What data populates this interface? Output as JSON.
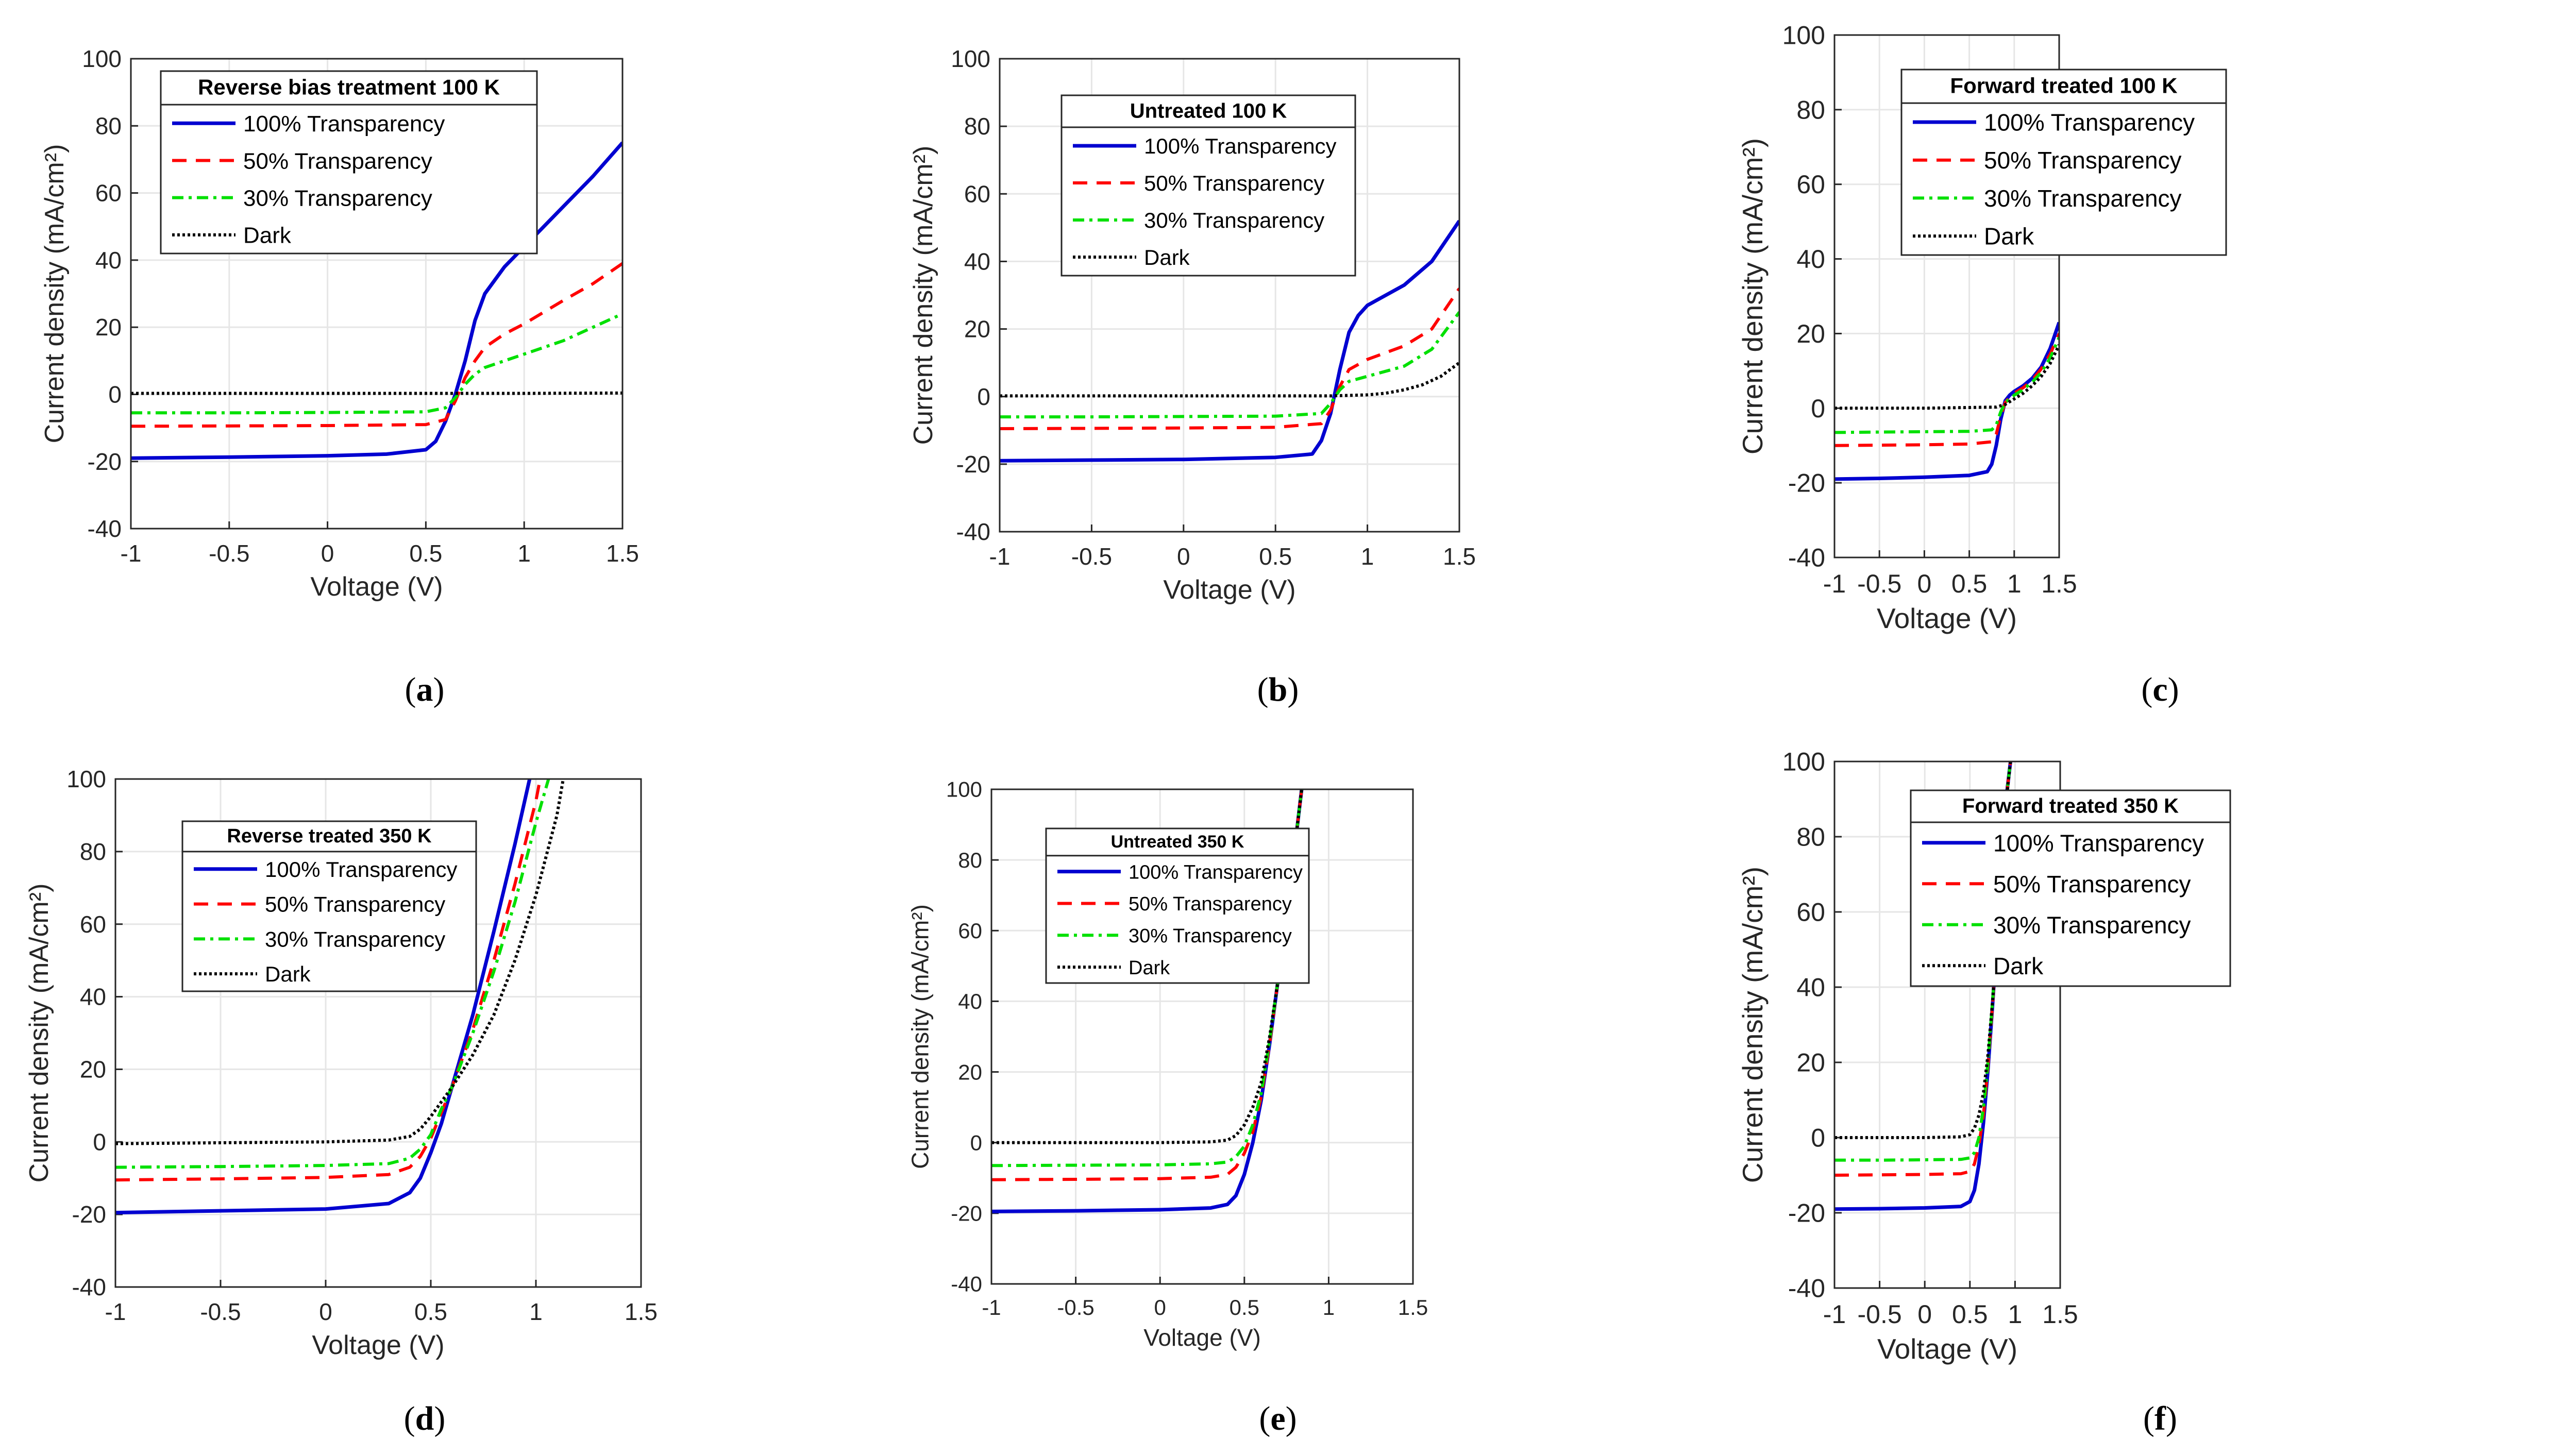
{
  "chart_data": [
    {
      "type": "line",
      "panel": "a",
      "legend_title": "Reverse bias treatment 100 K",
      "xlabel": "Voltage (V)",
      "ylabel": "Current density (mA/cm²)",
      "xlim": [
        -1,
        1.5
      ],
      "ylim": [
        -40,
        100
      ],
      "xticks": [
        "-1",
        "-0.5",
        "0",
        "0.5",
        "1",
        "1.5"
      ],
      "yticks": [
        "-40",
        "-20",
        "0",
        "20",
        "40",
        "60",
        "80",
        "100"
      ],
      "grid": true,
      "legend_position": "top-left",
      "series": [
        {
          "name": "100% Transparency",
          "style": "solid",
          "color": "#0000d0",
          "x": [
            -1,
            -0.5,
            0,
            0.3,
            0.5,
            0.55,
            0.6,
            0.65,
            0.7,
            0.75,
            0.8,
            0.9,
            1.0,
            1.2,
            1.35,
            1.5
          ],
          "values": [
            -19,
            -18.7,
            -18.3,
            -17.8,
            -16.5,
            -14,
            -8,
            0,
            10,
            22,
            30,
            38,
            44,
            56,
            65,
            75
          ]
        },
        {
          "name": "50% Transparency",
          "style": "dashed",
          "color": "#ff0000",
          "x": [
            -1,
            -0.5,
            0,
            0.5,
            0.6,
            0.65,
            0.7,
            0.75,
            0.8,
            0.9,
            1.0,
            1.2,
            1.35,
            1.5
          ],
          "values": [
            -9.5,
            -9.4,
            -9.3,
            -9,
            -7.5,
            -2,
            5,
            10,
            14,
            18,
            21,
            28,
            33,
            39
          ]
        },
        {
          "name": "30% Transparency",
          "style": "dashdot",
          "color": "#00e000",
          "x": [
            -1,
            -0.5,
            0,
            0.5,
            0.6,
            0.65,
            0.7,
            0.75,
            0.8,
            0.9,
            1.0,
            1.2,
            1.35,
            1.5
          ],
          "values": [
            -5.5,
            -5.5,
            -5.4,
            -5.2,
            -4,
            -1,
            3,
            6,
            8,
            10,
            12,
            16,
            20,
            24
          ]
        },
        {
          "name": "Dark",
          "style": "dotted",
          "color": "#000000",
          "x": [
            -1,
            0,
            1,
            1.5
          ],
          "values": [
            0.3,
            0.3,
            0.3,
            0.4
          ]
        }
      ]
    },
    {
      "type": "line",
      "panel": "b",
      "legend_title": "Untreated 100 K",
      "xlabel": "Voltage (V)",
      "ylabel": "Current density (mA/cm²)",
      "xlim": [
        -1,
        1.5
      ],
      "ylim": [
        -40,
        100
      ],
      "xticks": [
        "-1",
        "-0.5",
        "0",
        "0.5",
        "1",
        "1.5"
      ],
      "yticks": [
        "-40",
        "-20",
        "0",
        "20",
        "40",
        "60",
        "80",
        "100"
      ],
      "grid": true,
      "legend_position": "top-center",
      "series": [
        {
          "name": "100% Transparency",
          "style": "solid",
          "color": "#0000d0",
          "x": [
            -1,
            -0.5,
            0,
            0.5,
            0.7,
            0.75,
            0.8,
            0.85,
            0.9,
            0.95,
            1.0,
            1.2,
            1.35,
            1.5
          ],
          "values": [
            -19,
            -18.8,
            -18.6,
            -18,
            -17,
            -13,
            -5,
            8,
            19,
            24,
            27,
            33,
            40,
            52
          ]
        },
        {
          "name": "50% Transparency",
          "style": "dashed",
          "color": "#ff0000",
          "x": [
            -1,
            -0.5,
            0,
            0.5,
            0.75,
            0.8,
            0.85,
            0.9,
            1.0,
            1.2,
            1.35,
            1.5
          ],
          "values": [
            -9.5,
            -9.4,
            -9.3,
            -9.1,
            -8,
            -4,
            3,
            8,
            11,
            15,
            20,
            32
          ]
        },
        {
          "name": "30% Transparency",
          "style": "dashdot",
          "color": "#00e000",
          "x": [
            -1,
            -0.5,
            0,
            0.5,
            0.75,
            0.8,
            0.85,
            0.9,
            1.0,
            1.2,
            1.35,
            1.5
          ],
          "values": [
            -6,
            -6,
            -5.9,
            -5.8,
            -5,
            -2,
            2,
            4.5,
            6,
            9,
            14,
            25
          ]
        },
        {
          "name": "Dark",
          "style": "dotted",
          "color": "#000000",
          "x": [
            -1,
            0,
            0.8,
            1.0,
            1.1,
            1.2,
            1.3,
            1.4,
            1.5
          ],
          "values": [
            0.2,
            0.2,
            0.2,
            0.5,
            1,
            2,
            3.5,
            6,
            10
          ]
        }
      ]
    },
    {
      "type": "line",
      "panel": "c",
      "legend_title": "Forward treated 100 K",
      "xlabel": "Voltage (V)",
      "ylabel": "Current density (mA/cm²)",
      "xlim": [
        -1,
        1.5
      ],
      "ylim": [
        -40,
        100
      ],
      "xticks": [
        "-1",
        "-0.5",
        "0",
        "0.5",
        "1",
        "1.5"
      ],
      "yticks": [
        "-40",
        "-20",
        "0",
        "20",
        "40",
        "60",
        "80",
        "100"
      ],
      "grid": true,
      "legend_position": "top-center",
      "series": [
        {
          "name": "100% Transparency",
          "style": "solid",
          "color": "#0000d0",
          "x": [
            -1,
            -0.5,
            0,
            0.5,
            0.7,
            0.75,
            0.8,
            0.85,
            0.9,
            0.95,
            1.0,
            1.1,
            1.2,
            1.3,
            1.4,
            1.5
          ],
          "values": [
            -19,
            -18.8,
            -18.5,
            -18,
            -17,
            -15,
            -10,
            -3,
            2,
            3.5,
            4.5,
            6,
            8,
            11,
            16,
            23
          ]
        },
        {
          "name": "50% Transparency",
          "style": "dashed",
          "color": "#ff0000",
          "x": [
            -1,
            -0.5,
            0,
            0.5,
            0.75,
            0.8,
            0.85,
            0.9,
            0.95,
            1.0,
            1.1,
            1.2,
            1.3,
            1.4,
            1.5
          ],
          "values": [
            -10,
            -9.9,
            -9.8,
            -9.6,
            -9,
            -7,
            -2,
            1.5,
            3,
            4,
            5.5,
            7.5,
            10.5,
            14.5,
            20
          ]
        },
        {
          "name": "30% Transparency",
          "style": "dashdot",
          "color": "#00e000",
          "x": [
            -1,
            -0.5,
            0,
            0.5,
            0.75,
            0.8,
            0.85,
            0.9,
            0.95,
            1.0,
            1.1,
            1.2,
            1.3,
            1.4,
            1.5
          ],
          "values": [
            -6.5,
            -6.4,
            -6.3,
            -6.2,
            -5.8,
            -4.5,
            -1,
            1.5,
            2.5,
            3.5,
            5,
            7,
            9.5,
            13.5,
            19
          ]
        },
        {
          "name": "Dark",
          "style": "dotted",
          "color": "#000000",
          "x": [
            -1,
            0,
            0.8,
            0.9,
            1.0,
            1.1,
            1.2,
            1.3,
            1.4,
            1.5
          ],
          "values": [
            0,
            0,
            0.3,
            1,
            2.5,
            4,
            6,
            8.5,
            12,
            17
          ]
        }
      ]
    },
    {
      "type": "line",
      "panel": "d",
      "legend_title": "Reverse treated 350 K",
      "xlabel": "Voltage (V)",
      "ylabel": "Current density (mA/cm²)",
      "xlim": [
        -1,
        1.5
      ],
      "ylim": [
        -40,
        100
      ],
      "xticks": [
        "-1",
        "-0.5",
        "0",
        "0.5",
        "1",
        "1.5"
      ],
      "yticks": [
        "-40",
        "-20",
        "0",
        "20",
        "40",
        "60",
        "80",
        "100"
      ],
      "grid": true,
      "legend_position": "top-center",
      "series": [
        {
          "name": "100% Transparency",
          "style": "solid",
          "color": "#0000d0",
          "x": [
            -1,
            -0.5,
            0,
            0.3,
            0.4,
            0.45,
            0.5,
            0.55,
            0.6,
            0.7,
            0.8,
            0.9,
            0.97
          ],
          "values": [
            -19.5,
            -19,
            -18.5,
            -17,
            -14,
            -10,
            -3,
            5,
            15,
            35,
            58,
            82,
            100
          ]
        },
        {
          "name": "50% Transparency",
          "style": "dashed",
          "color": "#ff0000",
          "x": [
            -1,
            -0.5,
            0,
            0.3,
            0.4,
            0.45,
            0.5,
            0.55,
            0.6,
            0.7,
            0.8,
            0.9,
            1.0,
            1.02
          ],
          "values": [
            -10.5,
            -10.2,
            -9.8,
            -9,
            -7,
            -4,
            1,
            8,
            15,
            31,
            50,
            71,
            94,
            100
          ]
        },
        {
          "name": "30% Transparency",
          "style": "dashdot",
          "color": "#00e000",
          "x": [
            -1,
            -0.5,
            0,
            0.3,
            0.4,
            0.45,
            0.5,
            0.55,
            0.6,
            0.7,
            0.8,
            0.9,
            1.0,
            1.06
          ],
          "values": [
            -7,
            -6.8,
            -6.5,
            -6,
            -4.5,
            -2,
            2,
            9,
            15,
            30,
            47,
            66,
            88,
            100
          ]
        },
        {
          "name": "Dark",
          "style": "dotted",
          "color": "#000000",
          "x": [
            -1,
            0,
            0.3,
            0.4,
            0.45,
            0.5,
            0.55,
            0.6,
            0.7,
            0.8,
            0.9,
            1.0,
            1.1,
            1.13
          ],
          "values": [
            -0.5,
            0,
            0.5,
            1.5,
            3.5,
            7,
            11,
            15,
            24,
            35,
            50,
            68,
            90,
            100
          ]
        }
      ]
    },
    {
      "type": "line",
      "panel": "e",
      "legend_title": "Untreated 350 K",
      "xlabel": "Voltage (V)",
      "ylabel": "Current density (mA/cm²)",
      "xlim": [
        -1,
        1.5
      ],
      "ylim": [
        -40,
        100
      ],
      "xticks": [
        "-1",
        "-0.5",
        "0",
        "0.5",
        "1",
        "1.5"
      ],
      "yticks": [
        "-40",
        "-20",
        "0",
        "20",
        "40",
        "60",
        "80",
        "100"
      ],
      "grid": true,
      "legend_position": "top-center",
      "series": [
        {
          "name": "100% Transparency",
          "style": "solid",
          "color": "#0000d0",
          "x": [
            -1,
            -0.5,
            0,
            0.3,
            0.4,
            0.45,
            0.5,
            0.55,
            0.6,
            0.65,
            0.7,
            0.75,
            0.8,
            0.84
          ],
          "values": [
            -19.5,
            -19.3,
            -19,
            -18.5,
            -17.5,
            -15,
            -9,
            0,
            12,
            28,
            46,
            64,
            84,
            100
          ]
        },
        {
          "name": "50% Transparency",
          "style": "dashed",
          "color": "#ff0000",
          "x": [
            -1,
            -0.5,
            0,
            0.3,
            0.4,
            0.45,
            0.5,
            0.55,
            0.6,
            0.65,
            0.7,
            0.75,
            0.8,
            0.84
          ],
          "values": [
            -10.5,
            -10.4,
            -10.2,
            -9.8,
            -9,
            -7,
            -3,
            3,
            13,
            28,
            46,
            64,
            84,
            100
          ]
        },
        {
          "name": "30% Transparency",
          "style": "dashdot",
          "color": "#00e000",
          "x": [
            -1,
            -0.5,
            0,
            0.3,
            0.4,
            0.45,
            0.5,
            0.55,
            0.6,
            0.65,
            0.7,
            0.75,
            0.8,
            0.84
          ],
          "values": [
            -6.5,
            -6.4,
            -6.3,
            -6,
            -5.5,
            -4,
            -1,
            5,
            14,
            29,
            46,
            64,
            84,
            100
          ]
        },
        {
          "name": "Dark",
          "style": "dotted",
          "color": "#000000",
          "x": [
            -1,
            0,
            0.3,
            0.4,
            0.45,
            0.5,
            0.55,
            0.6,
            0.65,
            0.7,
            0.75,
            0.8,
            0.84
          ],
          "values": [
            0,
            0,
            0.2,
            0.7,
            2,
            5,
            10,
            17,
            30,
            46,
            64,
            84,
            100
          ]
        }
      ]
    },
    {
      "type": "line",
      "panel": "f",
      "legend_title": "Forward treated 350 K",
      "xlabel": "Voltage (V)",
      "ylabel": "Current density (mA/cm²)",
      "xlim": [
        -1,
        1.5
      ],
      "ylim": [
        -40,
        100
      ],
      "xticks": [
        "-1",
        "-0.5",
        "0",
        "0.5",
        "1",
        "1.5"
      ],
      "yticks": [
        "-40",
        "-20",
        "0",
        "20",
        "40",
        "60",
        "80",
        "100"
      ],
      "grid": true,
      "legend_position": "top-center",
      "series": [
        {
          "name": "100% Transparency",
          "style": "solid",
          "color": "#0000d0",
          "x": [
            -1,
            -0.5,
            0,
            0.4,
            0.5,
            0.55,
            0.6,
            0.65,
            0.7,
            0.75,
            0.8,
            0.85,
            0.9,
            0.95
          ],
          "values": [
            -19,
            -18.9,
            -18.7,
            -18.3,
            -17,
            -14,
            -7,
            4,
            18,
            35,
            53,
            72,
            90,
            100
          ]
        },
        {
          "name": "50% Transparency",
          "style": "dashed",
          "color": "#ff0000",
          "x": [
            -1,
            -0.5,
            0,
            0.4,
            0.5,
            0.55,
            0.6,
            0.65,
            0.7,
            0.75,
            0.8,
            0.85,
            0.9,
            0.95
          ],
          "values": [
            -10,
            -9.9,
            -9.8,
            -9.6,
            -9,
            -7,
            -2,
            6,
            19,
            35,
            53,
            72,
            90,
            100
          ]
        },
        {
          "name": "30% Transparency",
          "style": "dashdot",
          "color": "#00e000",
          "x": [
            -1,
            -0.5,
            0,
            0.4,
            0.5,
            0.55,
            0.6,
            0.65,
            0.7,
            0.75,
            0.8,
            0.85,
            0.9,
            0.95
          ],
          "values": [
            -6,
            -6,
            -5.9,
            -5.8,
            -5.4,
            -4,
            0,
            8,
            20,
            36,
            53,
            72,
            90,
            100
          ]
        },
        {
          "name": "Dark",
          "style": "dotted",
          "color": "#000000",
          "x": [
            -1,
            0,
            0.4,
            0.5,
            0.55,
            0.6,
            0.65,
            0.7,
            0.75,
            0.8,
            0.85,
            0.9,
            0.95
          ],
          "values": [
            0,
            0,
            0.2,
            0.8,
            2.5,
            6,
            12,
            22,
            36,
            53,
            71,
            89,
            100
          ]
        }
      ]
    }
  ]
}
